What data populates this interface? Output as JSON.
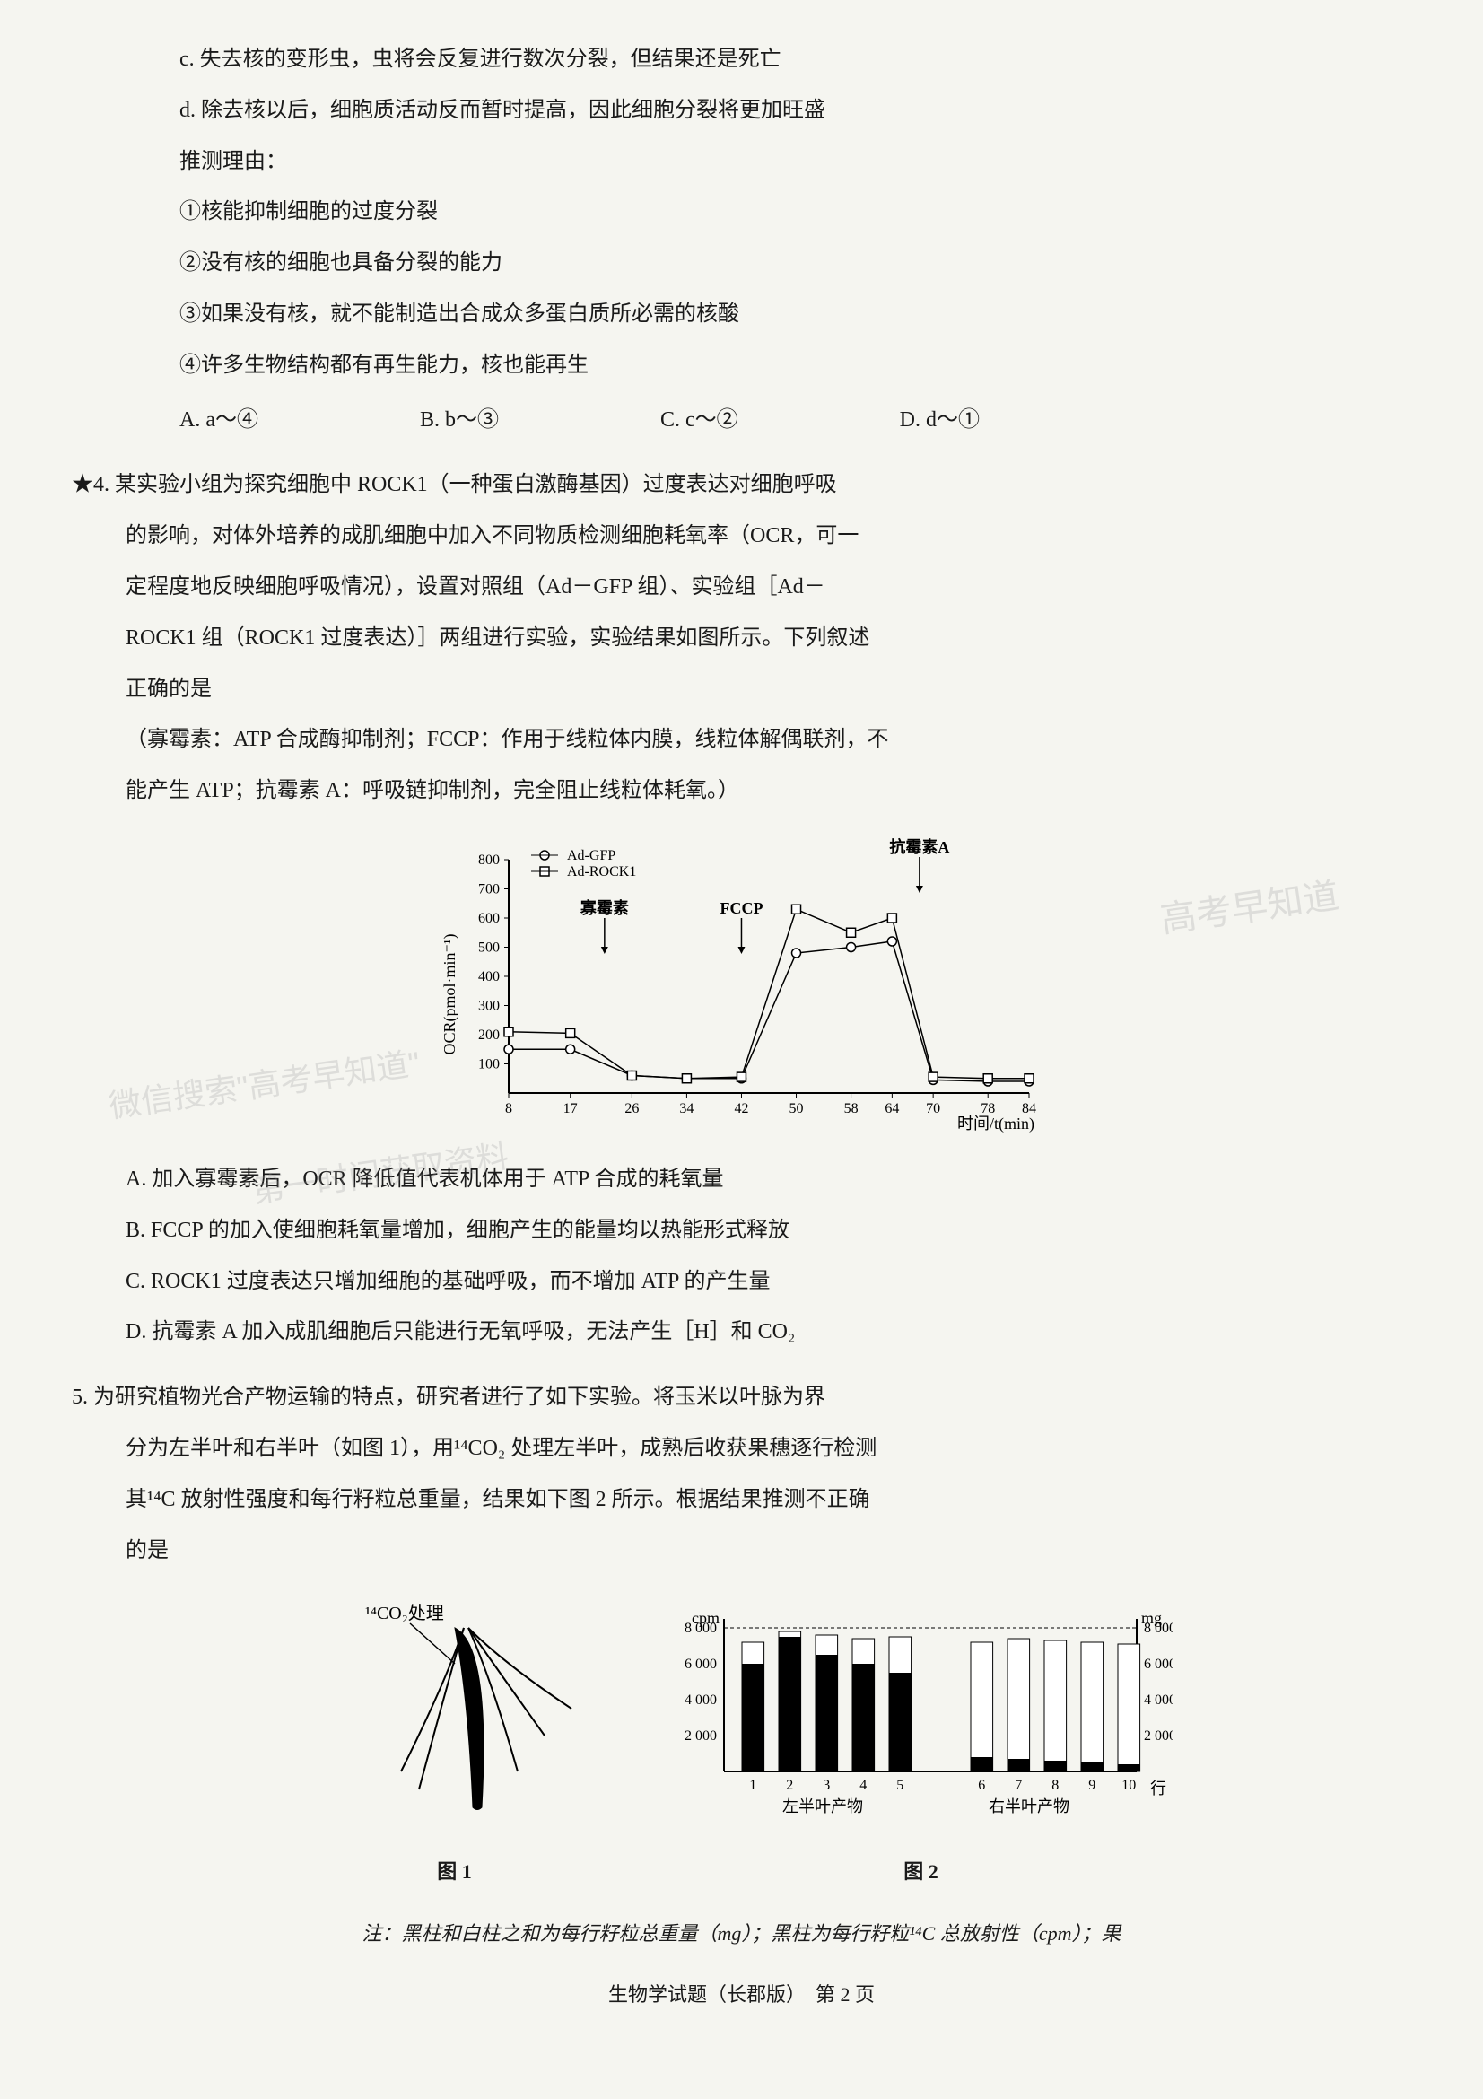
{
  "lines": {
    "c": "c. 失去核的变形虫，虫将会反复进行数次分裂，但结果还是死亡",
    "d": "d. 除去核以后，细胞质活动反而暂时提高，因此细胞分裂将更加旺盛",
    "reason_label": "推测理由：",
    "r1": "①核能抑制细胞的过度分裂",
    "r2": "②没有核的细胞也具备分裂的能力",
    "r3": "③如果没有核，就不能制造出合成众多蛋白质所必需的核酸",
    "r4": "④许多生物结构都有再生能力，核也能再生"
  },
  "options3": {
    "A": "A. a～④",
    "B": "B. b～③",
    "C": "C. c～②",
    "D": "D. d～①"
  },
  "q4": {
    "num": "★4.",
    "p1": "某实验小组为探究细胞中 ROCK1（一种蛋白激酶基因）过度表达对细胞呼吸",
    "p2": "的影响，对体外培养的成肌细胞中加入不同物质检测细胞耗氧率（OCR，可一",
    "p3": "定程度地反映细胞呼吸情况），设置对照组（Ad－GFP 组）、实验组［Ad－",
    "p4": "ROCK1 组（ROCK1 过度表达）］两组进行实验，实验结果如图所示。下列叙述",
    "p5": "正确的是",
    "p6": "（寡霉素：ATP 合成酶抑制剂；FCCP：作用于线粒体内膜，线粒体解偶联剂，不",
    "p7": "能产生 ATP；抗霉素 A：呼吸链抑制剂，完全阻止线粒体耗氧。）",
    "optA": "A. 加入寡霉素后，OCR 降低值代表机体用于 ATP 合成的耗氧量",
    "optB": "B. FCCP 的加入使细胞耗氧量增加，细胞产生的能量均以热能形式释放",
    "optC": "C. ROCK1 过度表达只增加细胞的基础呼吸，而不增加 ATP 的产生量",
    "optD": "D. 抗霉素 A 加入成肌细胞后只能进行无氧呼吸，无法产生［H］和 CO₂"
  },
  "chart": {
    "type": "line",
    "ylabel": "OCR(pmol·min⁻¹)",
    "xlabel": "时间/t(min)",
    "x_ticks": [
      8,
      17,
      26,
      34,
      42,
      50,
      58,
      64,
      70,
      78,
      84
    ],
    "y_ticks": [
      100,
      200,
      300,
      400,
      500,
      600,
      700,
      800
    ],
    "ylim": [
      0,
      800
    ],
    "legend": [
      "Ad-GFP",
      "Ad-ROCK1"
    ],
    "markers": [
      "circle",
      "square"
    ],
    "annotations": [
      {
        "label": "寡霉素",
        "x_near": 22
      },
      {
        "label": "FCCP",
        "x_near": 42
      },
      {
        "label": "抗霉素A",
        "x_near": 68
      }
    ],
    "series_gfp": [
      150,
      150,
      60,
      50,
      50,
      480,
      500,
      520,
      45,
      40,
      40
    ],
    "series_rock1": [
      210,
      205,
      60,
      50,
      55,
      630,
      550,
      600,
      55,
      50,
      50
    ],
    "line_color": "#000000",
    "marker_fill": "#ffffff",
    "marker_stroke": "#000000",
    "background": "#f5f5f0",
    "font_size": 18
  },
  "q5": {
    "num": "5.",
    "p1": "为研究植物光合产物运输的特点，研究者进行了如下实验。将玉米以叶脉为界",
    "p2": "分为左半叶和右半叶（如图 1），用¹⁴CO₂ 处理左半叶，成熟后收获果穗逐行检测",
    "p3": "其¹⁴C 放射性强度和每行籽粒总重量，结果如下图 2 所示。根据结果推测不正确",
    "p4": "的是"
  },
  "fig1": {
    "label": "图 1",
    "annotation": "¹⁴CO₂处理"
  },
  "fig2": {
    "type": "bar",
    "label": "图 2",
    "y_left_label": "cpm",
    "y_left_ticks": [
      2000,
      4000,
      6000,
      8000
    ],
    "y_right_label": "mg",
    "y_right_ticks": [
      2000,
      4000,
      6000,
      8000
    ],
    "x_categories": [
      1,
      2,
      3,
      4,
      5,
      6,
      7,
      8,
      9,
      10
    ],
    "x_label_right": "行",
    "x_group_left": "左半叶产物",
    "x_group_right": "右半叶产物",
    "black_bars": [
      6000,
      7500,
      6500,
      6000,
      5500,
      800,
      700,
      600,
      500,
      400
    ],
    "total_bars": [
      7200,
      7800,
      7600,
      7400,
      7500,
      7200,
      7400,
      7300,
      7200,
      7100
    ],
    "black_color": "#000000",
    "white_color": "#ffffff",
    "dashed_line_y": 8000
  },
  "note": "注：黑柱和白柱之和为每行籽粒总重量（mg）；黑柱为每行籽粒¹⁴C 总放射性（cpm）；果",
  "footer": "生物学试题（长郡版）　第 2 页",
  "watermarks": {
    "w1": "高考早知道",
    "w2": "微信搜索\"高考早知道\"",
    "w3": "第一时间获取资料"
  }
}
